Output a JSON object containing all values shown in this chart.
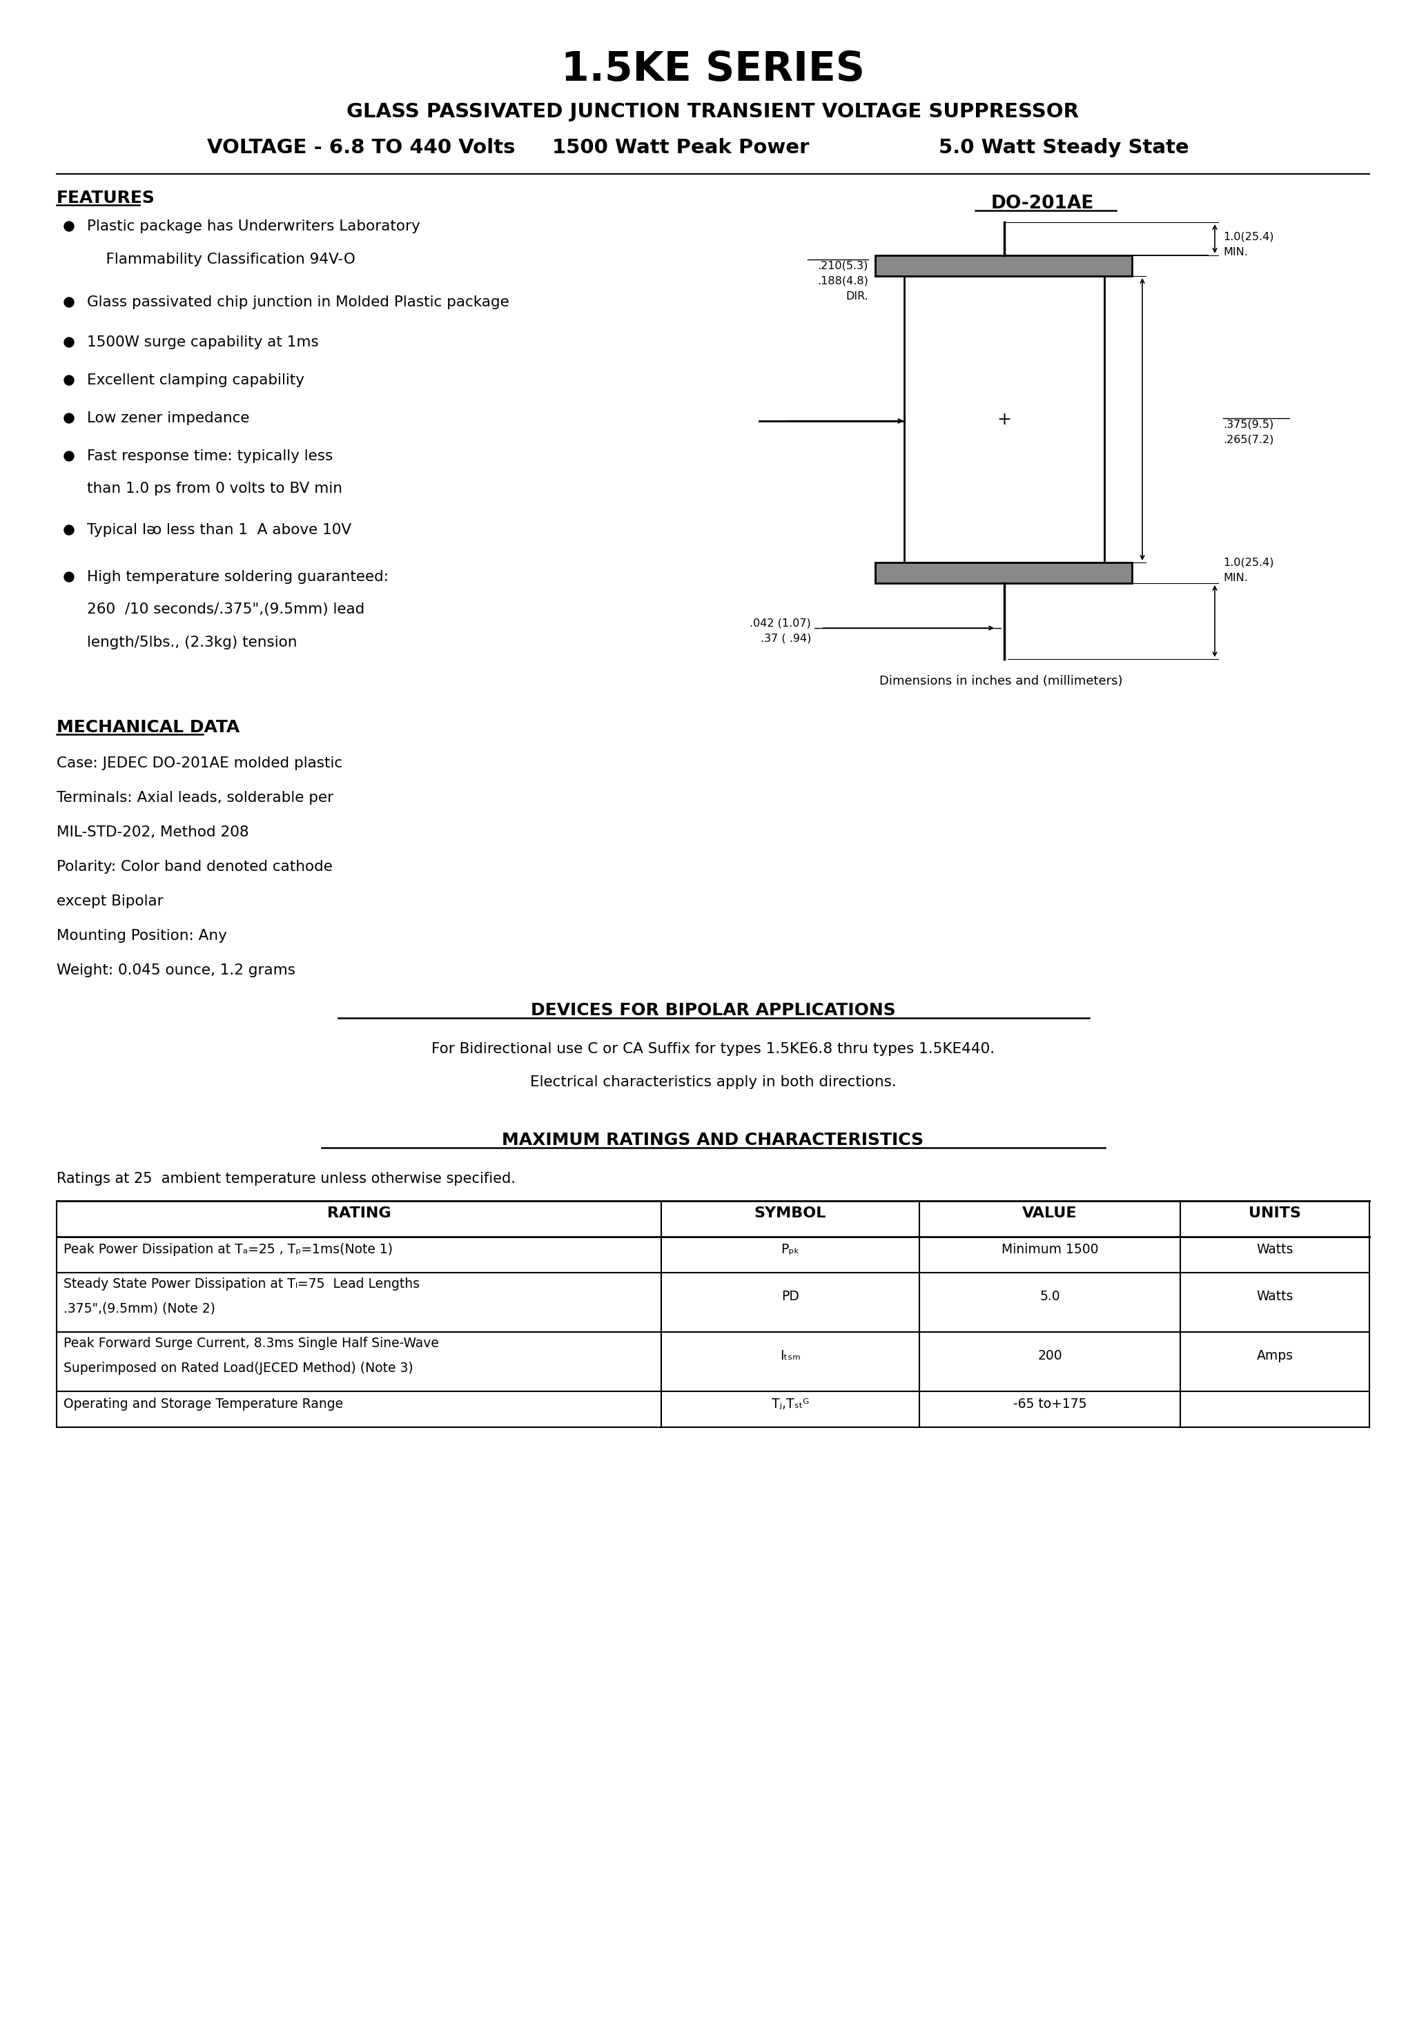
{
  "bg_color": "#ffffff",
  "title": "1.5KE SERIES",
  "sub1": "GLASS PASSIVATED JUNCTION TRANSIENT VOLTAGE SUPPRESSOR",
  "sub2_p1": "VOLTAGE - 6.8 TO 440 Volts",
  "sub2_p2": "1500 Watt Peak Power",
  "sub2_p3": "5.0 Watt Steady State",
  "features_title": "FEATURES",
  "bullets": [
    [
      true,
      "Plastic package has Underwriters Laboratory"
    ],
    [
      false,
      "    Flammability Classification 94V-O"
    ],
    [
      true,
      "Glass passivated chip junction in Molded Plastic package"
    ],
    [
      true,
      "1500W surge capability at 1ms"
    ],
    [
      true,
      "Excellent clamping capability"
    ],
    [
      true,
      "Low zener impedance"
    ],
    [
      true,
      "Fast response time: typically less"
    ],
    [
      false,
      "than 1.0 ps from 0 volts to BV min"
    ],
    [
      true,
      "Typical Iᴔ less than 1  A above 10V"
    ],
    [
      true,
      "High temperature soldering guaranteed:"
    ],
    [
      false,
      "260  /10 seconds/.375\",(9.5mm) lead"
    ],
    [
      false,
      "length/5lbs., (2.3kg) tension"
    ]
  ],
  "diagram_label": "DO-201AE",
  "dim_notes": [
    [
      ".210(5.3)",
      ".188(4.8)",
      "DIR."
    ],
    [
      "1.0(25.4)",
      "MIN."
    ],
    [
      ".375(9.5)",
      ".265(7.2)"
    ],
    [
      "1.0(25.4)",
      "MIN."
    ],
    [
      ".042 (1.07)",
      ".37 (.94)"
    ]
  ],
  "dim_note_footer": "Dimensions in inches and (millimeters)",
  "mech_title": "MECHANICAL DATA",
  "mech_lines": [
    "Case: JEDEC DO-201AE molded plastic",
    "Terminals: Axial leads, solderable per",
    "MIL-STD-202, Method 208",
    "Polarity: Color band denoted cathode",
    "except Bipolar",
    "Mounting Position: Any",
    "Weight: 0.045 ounce, 1.2 grams"
  ],
  "bipolar_title": "DEVICES FOR BIPOLAR APPLICATIONS",
  "bipolar_line1": "For Bidirectional use C or CA Suffix for types 1.5KE6.8 thru types 1.5KE440.",
  "bipolar_line2": "Electrical characteristics apply in both directions.",
  "ratings_title": "MAXIMUM RATINGS AND CHARACTERISTICS",
  "ratings_note": "Ratings at 25  ambient temperature unless otherwise specified.",
  "col_headers": [
    "RATING",
    "SYMBOL",
    "VALUE",
    "UNITS"
  ],
  "rows": [
    {
      "rating1": "Peak Power Dissipation at Tₐ=25 , Tₚ=1ms(Note 1)",
      "rating2": "",
      "symbol": "Pₚₖ",
      "value": "Minimum 1500",
      "units": "Watts"
    },
    {
      "rating1": "Steady State Power Dissipation at Tₗ=75  Lead Lengths",
      "rating2": ".375\",(9.5mm) (Note 2)",
      "symbol": "PD",
      "value": "5.0",
      "units": "Watts"
    },
    {
      "rating1": "Peak Forward Surge Current, 8.3ms Single Half Sine-Wave",
      "rating2": "Superimposed on Rated Load(JECED Method) (Note 3)",
      "symbol": "Iₜₛₘ",
      "value": "200",
      "units": "Amps"
    },
    {
      "rating1": "Operating and Storage Temperature Range",
      "rating2": "",
      "symbol": "Tⱼ,Tₛₜᴳ",
      "value": "-65 to+175",
      "units": ""
    }
  ]
}
